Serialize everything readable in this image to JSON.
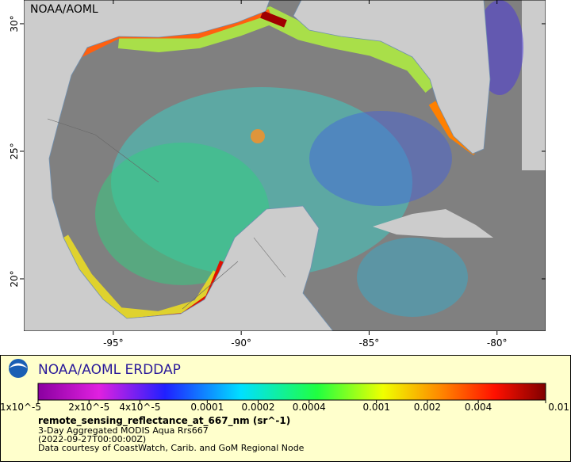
{
  "chart_data": {
    "type": "map",
    "title": "NOAA/AOML ERDDAP",
    "watermark": "NOAA/AOML",
    "variable": "remote_sensing_reflectance_at_667_nm (sr^-1)",
    "subtitle": "3-Day Aggregated MODIS Aqua Rrs667",
    "time": "(2022-09-27T00:00:00Z)",
    "credit": "Data courtesy of CoastWatch, Carib. and GoM Regional Node",
    "xlim": [
      -98.5,
      -78.1
    ],
    "ylim": [
      17.95,
      30.93
    ],
    "xticks": [
      {
        "value": -95,
        "label": "-95°"
      },
      {
        "value": -90,
        "label": "-90°"
      },
      {
        "value": -85,
        "label": "-85°"
      },
      {
        "value": -80,
        "label": "-80°"
      }
    ],
    "yticks": [
      {
        "value": 30,
        "label": "30°"
      },
      {
        "value": 25,
        "label": "25°"
      },
      {
        "value": 20,
        "label": "20°"
      }
    ],
    "colorbar": {
      "log": true,
      "lim": [
        1e-05,
        0.01
      ],
      "ticks": [
        {
          "value": 1e-05,
          "label": "1x10^-5"
        },
        {
          "value": 2e-05,
          "label": "2x10^-5"
        },
        {
          "value": 4e-05,
          "label": "4x10^-5"
        },
        0.0001,
        0.0002,
        0.0004,
        0.001,
        0.002,
        0.004,
        0.01
      ]
    }
  }
}
